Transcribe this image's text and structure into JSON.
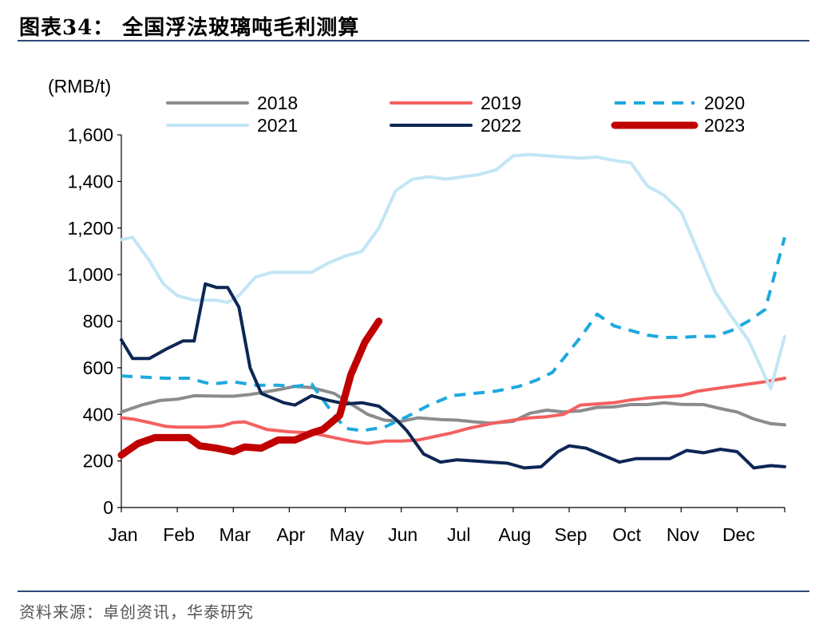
{
  "header": {
    "title": "图表34：  全国浮法玻璃吨毛利测算"
  },
  "footer": {
    "source": "资料来源：卓创资讯，华泰研究"
  },
  "chart_data": {
    "type": "line",
    "ylabel": "(RMB/t)",
    "ylim": [
      0,
      1600
    ],
    "yticks": [
      "0",
      "200",
      "400",
      "600",
      "800",
      "1,000",
      "1,200",
      "1,400",
      "1,600"
    ],
    "ytick_values": [
      0,
      200,
      400,
      600,
      800,
      1000,
      1200,
      1400,
      1600
    ],
    "xlim": [
      0,
      11.85
    ],
    "months": [
      "Jan",
      "Feb",
      "Mar",
      "Apr",
      "May",
      "Jun",
      "Jul",
      "Aug",
      "Sep",
      "Oct",
      "Nov",
      "Dec"
    ],
    "grid": false,
    "legend_position": "top",
    "series": [
      {
        "name": "2018",
        "color": "#8c8c8c",
        "style": "solid",
        "width": 4,
        "x": [
          0,
          0.36,
          0.7,
          1,
          1.3,
          1.8,
          2,
          2.3,
          2.6,
          2.9,
          3.1,
          3.4,
          3.8,
          4.1,
          4.4,
          4.7,
          5,
          5.3,
          5.7,
          6,
          6.3,
          6.6,
          7,
          7.3,
          7.6,
          7.9,
          8.2,
          8.5,
          8.8,
          9.1,
          9.4,
          9.7,
          10,
          10.4,
          10.7,
          11,
          11.3,
          11.6,
          11.85
        ],
        "y": [
          410,
          440,
          460,
          465,
          480,
          478,
          478,
          485,
          497,
          510,
          520,
          515,
          490,
          445,
          400,
          375,
          370,
          385,
          378,
          375,
          368,
          362,
          370,
          405,
          418,
          410,
          415,
          430,
          432,
          442,
          442,
          450,
          443,
          442,
          425,
          410,
          380,
          360,
          355
        ]
      },
      {
        "name": "2019",
        "color": "#f46060",
        "style": "solid",
        "width": 4,
        "x": [
          0,
          0.2,
          0.5,
          0.8,
          1,
          1.5,
          1.8,
          2,
          2.2,
          2.6,
          3,
          3.4,
          3.8,
          4.1,
          4.4,
          4.7,
          5,
          5.3,
          5.6,
          5.9,
          6.2,
          6.6,
          7,
          7.3,
          7.6,
          7.9,
          8.2,
          8.5,
          8.8,
          9.1,
          9.4,
          9.7,
          10,
          10.3,
          10.6,
          10.9,
          11.2,
          11.5,
          11.85
        ],
        "y": [
          385,
          380,
          365,
          348,
          345,
          345,
          350,
          365,
          368,
          335,
          325,
          320,
          300,
          285,
          275,
          285,
          285,
          290,
          305,
          320,
          340,
          360,
          375,
          385,
          390,
          400,
          440,
          445,
          450,
          462,
          470,
          475,
          480,
          500,
          510,
          520,
          530,
          540,
          555
        ]
      },
      {
        "name": "2020",
        "color": "#1ea9de",
        "style": "dashed",
        "width": 4,
        "x": [
          0,
          0.4,
          0.8,
          1.2,
          1.6,
          2,
          2.4,
          2.8,
          3.1,
          3.4,
          3.7,
          4,
          4.3,
          4.7,
          5.1,
          5.5,
          5.9,
          6.3,
          6.7,
          7.1,
          7.4,
          7.7,
          7.9,
          8.2,
          8.5,
          8.8,
          9.1,
          9.4,
          9.7,
          10,
          10.3,
          10.6,
          10.9,
          11.2,
          11.5,
          11.85
        ],
        "y": [
          565,
          560,
          555,
          555,
          530,
          540,
          525,
          525,
          520,
          530,
          430,
          340,
          330,
          345,
          390,
          440,
          480,
          490,
          500,
          520,
          545,
          580,
          640,
          730,
          830,
          780,
          760,
          740,
          730,
          730,
          735,
          735,
          760,
          800,
          850,
          1160
        ]
      },
      {
        "name": "2021",
        "color": "#c2e6f5",
        "style": "solid",
        "width": 4,
        "x": [
          0,
          0.2,
          0.5,
          0.75,
          1,
          1.3,
          1.7,
          1.9,
          2.1,
          2.4,
          2.7,
          3,
          3.4,
          3.7,
          4,
          4.3,
          4.6,
          4.9,
          5.2,
          5.5,
          5.8,
          6.1,
          6.4,
          6.7,
          7,
          7.3,
          7.6,
          7.9,
          8.2,
          8.5,
          8.8,
          9.1,
          9.4,
          9.7,
          10,
          10.3,
          10.6,
          10.9,
          11.2,
          11.6,
          11.85
        ],
        "y": [
          1150,
          1160,
          1060,
          960,
          910,
          890,
          890,
          880,
          910,
          990,
          1010,
          1010,
          1010,
          1050,
          1080,
          1100,
          1200,
          1360,
          1410,
          1420,
          1410,
          1420,
          1430,
          1450,
          1510,
          1515,
          1510,
          1505,
          1500,
          1505,
          1490,
          1480,
          1380,
          1340,
          1270,
          1100,
          930,
          820,
          720,
          510,
          735
        ]
      },
      {
        "name": "2022",
        "color": "#0d2654",
        "style": "solid",
        "width": 4,
        "x": [
          0,
          0.2,
          0.5,
          0.8,
          1.1,
          1.3,
          1.5,
          1.7,
          1.9,
          2.1,
          2.3,
          2.5,
          2.7,
          2.9,
          3.1,
          3.4,
          3.7,
          4,
          4.3,
          4.6,
          4.9,
          5.1,
          5.4,
          5.7,
          6,
          6.3,
          6.6,
          6.9,
          7.2,
          7.5,
          7.8,
          8,
          8.3,
          8.6,
          8.9,
          9.2,
          9.5,
          9.8,
          10.1,
          10.4,
          10.7,
          11,
          11.3,
          11.6,
          11.85
        ],
        "y": [
          720,
          640,
          640,
          680,
          715,
          715,
          960,
          945,
          945,
          860,
          600,
          490,
          470,
          450,
          440,
          480,
          460,
          445,
          450,
          435,
          380,
          330,
          230,
          195,
          205,
          200,
          195,
          190,
          170,
          175,
          240,
          265,
          255,
          225,
          195,
          210,
          210,
          210,
          245,
          235,
          250,
          240,
          170,
          180,
          175
        ]
      },
      {
        "name": "2023",
        "color": "#c00000",
        "style": "solid",
        "width": 9,
        "x": [
          0,
          0.3,
          0.6,
          0.9,
          1.2,
          1.4,
          1.7,
          2,
          2.2,
          2.5,
          2.8,
          3.1,
          3.4,
          3.6,
          3.9,
          4.1,
          4.35,
          4.6
        ],
        "y": [
          225,
          275,
          300,
          300,
          300,
          265,
          255,
          240,
          260,
          255,
          290,
          290,
          320,
          335,
          395,
          570,
          710,
          800
        ]
      }
    ]
  }
}
